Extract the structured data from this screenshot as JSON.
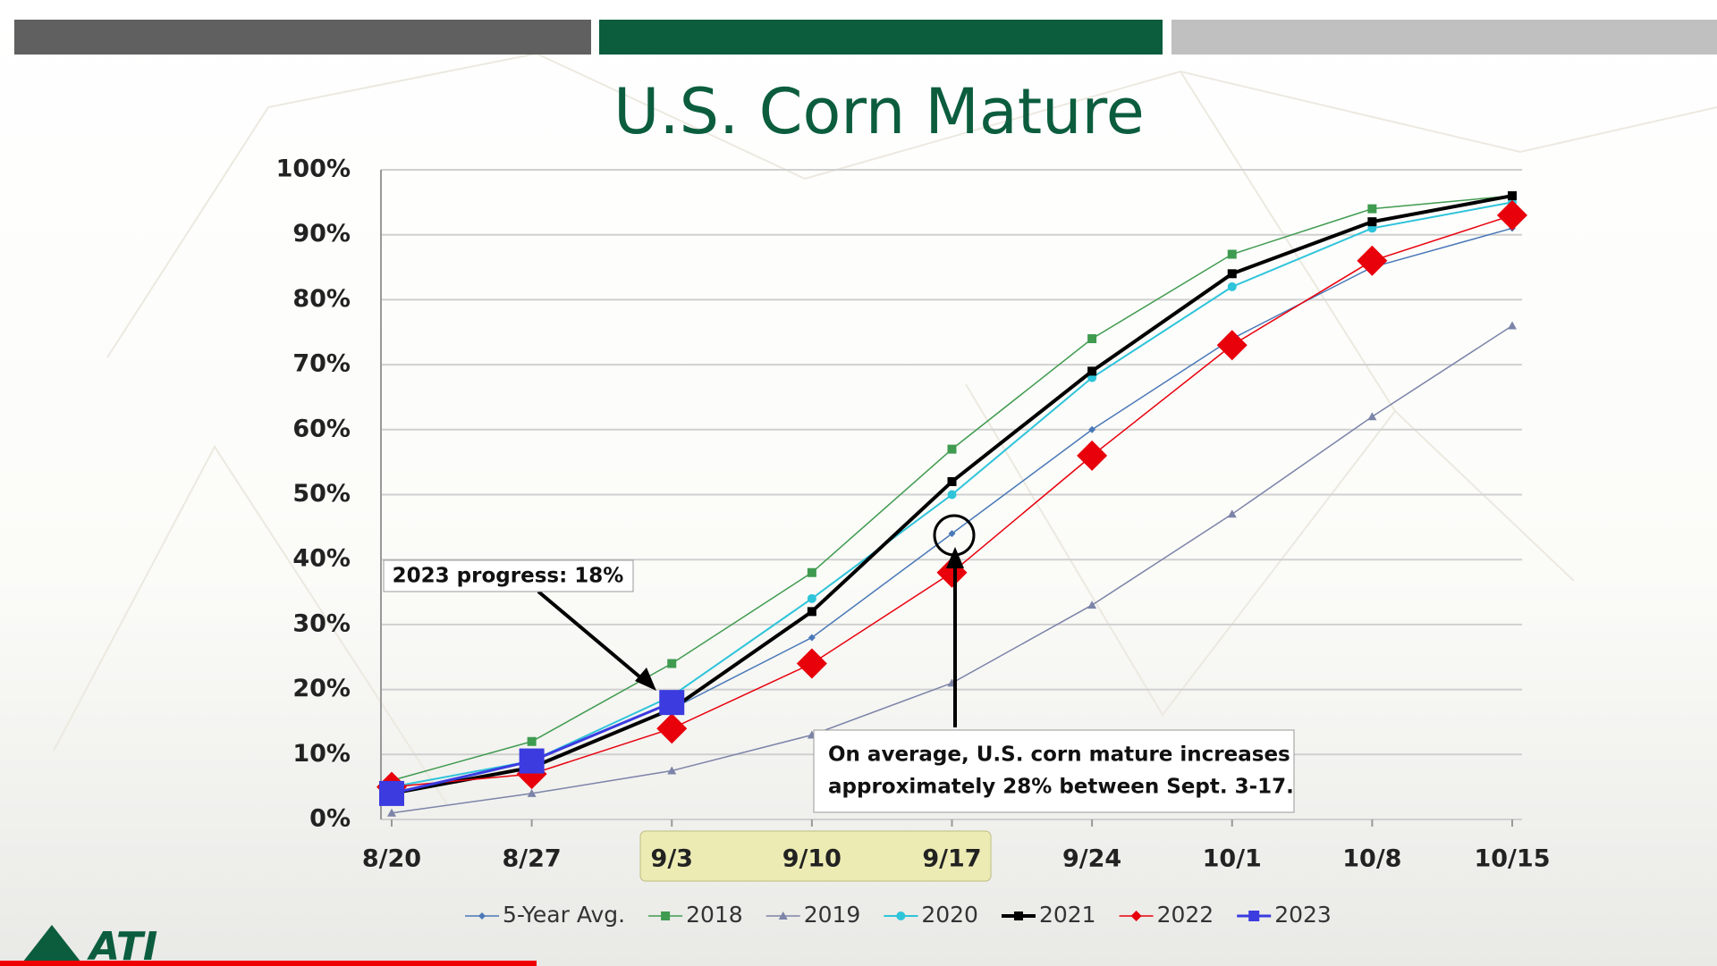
{
  "chart_data": {
    "type": "line",
    "title": "U.S. Corn Mature",
    "categories": [
      "8/20",
      "8/27",
      "9/3",
      "9/10",
      "9/17",
      "9/24",
      "10/1",
      "10/8",
      "10/15"
    ],
    "ylim": [
      0,
      100
    ],
    "yticks": [
      {
        "value": 0,
        "label": "0%"
      },
      {
        "value": 10,
        "label": "10%"
      },
      {
        "value": 20,
        "label": "20%"
      },
      {
        "value": 30,
        "label": "30%"
      },
      {
        "value": 40,
        "label": "40%"
      },
      {
        "value": 50,
        "label": "50%"
      },
      {
        "value": 60,
        "label": "60%"
      },
      {
        "value": 70,
        "label": "70%"
      },
      {
        "value": 80,
        "label": "80%"
      },
      {
        "value": 90,
        "label": "90%"
      },
      {
        "value": 100,
        "label": "100%"
      }
    ],
    "grid": true,
    "legend": "bottom",
    "series": [
      {
        "name": "5-Year Avg.",
        "color": "#4a78b8",
        "marker": "diamond",
        "width": 1.5,
        "size": 4,
        "values": [
          4,
          8,
          17,
          28,
          44,
          60,
          74,
          85,
          91
        ]
      },
      {
        "name": "2018",
        "color": "#3f9b4f",
        "marker": "square",
        "width": 1.5,
        "size": 5,
        "values": [
          6,
          12,
          24,
          38,
          57,
          74,
          87,
          94,
          96
        ]
      },
      {
        "name": "2019",
        "color": "#7c84a8",
        "marker": "triangle",
        "width": 1.5,
        "size": 5,
        "values": [
          1,
          4,
          7.5,
          13,
          21,
          33,
          47,
          62,
          76
        ]
      },
      {
        "name": "2020",
        "color": "#2ec4da",
        "marker": "circle",
        "width": 2,
        "size": 5,
        "values": [
          5,
          9,
          19,
          34,
          50,
          68,
          82,
          91,
          95
        ]
      },
      {
        "name": "2021",
        "color": "#000000",
        "marker": "square",
        "width": 4,
        "size": 5,
        "values": [
          4,
          8,
          17,
          32,
          52,
          69,
          84,
          92,
          96
        ]
      },
      {
        "name": "2022",
        "color": "#e8000b",
        "marker": "diamond",
        "width": 1.5,
        "size": 17,
        "values": [
          5,
          7,
          14,
          24,
          38,
          56,
          73,
          86,
          93
        ]
      },
      {
        "name": "2023",
        "color": "#3b3be0",
        "marker": "square",
        "width": 3,
        "size": 14,
        "values": [
          4,
          9,
          18,
          null,
          null,
          null,
          null,
          null,
          null
        ]
      }
    ],
    "annotations": [
      "2023 progress: 18%",
      "On average, U.S. corn mature increases",
      "approximately 28% between Sept. 3-17."
    ],
    "logo": "ATI"
  }
}
